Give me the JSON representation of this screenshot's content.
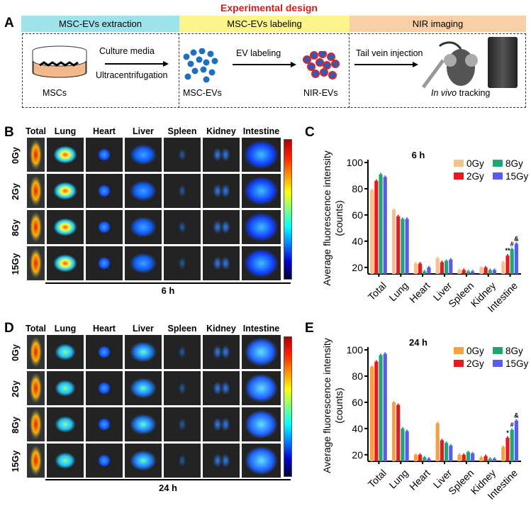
{
  "panel_a": {
    "label": "A",
    "title": "Experimental  design",
    "stages": [
      {
        "label": "MSC-EVs extraction",
        "color": "#9ee3ea"
      },
      {
        "label": "MSC-EVs labeling",
        "color": "#fbf58c"
      },
      {
        "label": "NIR imaging",
        "color": "#f9cfa5"
      }
    ],
    "texts": {
      "culture": "Culture media",
      "ultra": "Ultracentrifugation",
      "mscs": "MSCs",
      "ev_labeling": "EV labeling",
      "msc_evs": "MSC-EVs",
      "nir_evs": "NIR-EVs",
      "tail": "Tail vein injection",
      "in_vivo": "In vivo",
      "tracking": " tracking"
    }
  },
  "panel_b": {
    "label": "B",
    "time": "6 h"
  },
  "panel_d": {
    "label": "D",
    "time": "24 h"
  },
  "image_columns": [
    "Total",
    "Lung",
    "Heart",
    "Liver",
    "Spleen",
    "Kidney",
    "Intestine"
  ],
  "image_rows": [
    "0Gy",
    "2Gy",
    "8Gy",
    "15Gy"
  ],
  "chart_data": [
    {
      "panel": "C",
      "type": "bar",
      "title": "6 h",
      "ylabel": "Average fluorescence intensity\n(counts)",
      "ylabel_lines": [
        "Average fluorescence intensity",
        "(counts)"
      ],
      "ylim": [
        15,
        100
      ],
      "yticks": [
        20,
        40,
        60,
        80,
        100
      ],
      "categories": [
        "Total",
        "Lung",
        "Heart",
        "Liver",
        "Spleen",
        "Kidney",
        "Intestine"
      ],
      "legend": "top-right",
      "series": [
        {
          "name": "0Gy",
          "color": "#f8c08a",
          "values": [
            79,
            64,
            23,
            27,
            18,
            20,
            24
          ]
        },
        {
          "name": "2Gy",
          "color": "#e8191e",
          "values": [
            86,
            59,
            23,
            24,
            18,
            20,
            29
          ]
        },
        {
          "name": "8Gy",
          "color": "#1fa672",
          "values": [
            91,
            57,
            17,
            25,
            17,
            18,
            34
          ]
        },
        {
          "name": "15Gy",
          "color": "#5a5af0",
          "values": [
            89,
            57,
            20,
            26,
            17,
            18,
            38
          ]
        }
      ],
      "annotations": [
        {
          "category": "Intestine",
          "series": "2Gy",
          "text": "**"
        },
        {
          "category": "Intestine",
          "series": "8Gy",
          "text": "#"
        },
        {
          "category": "Intestine",
          "series": "15Gy",
          "text": "&"
        }
      ]
    },
    {
      "panel": "E",
      "type": "bar",
      "title": "24 h",
      "ylabel": "Average fluorescence intensity\n(counts)",
      "ylabel_lines": [
        "Average fluorescence intensity",
        "(counts)"
      ],
      "ylim": [
        15,
        100
      ],
      "yticks": [
        20,
        40,
        60,
        80,
        100
      ],
      "categories": [
        "Total",
        "Lung",
        "Heart",
        "Liver",
        "Spleen",
        "Kidney",
        "Intestine"
      ],
      "legend": "top-right",
      "series": [
        {
          "name": "0Gy",
          "color": "#f6a040",
          "values": [
            87,
            60,
            20,
            44,
            20,
            18,
            26
          ]
        },
        {
          "name": "2Gy",
          "color": "#e8191e",
          "values": [
            91,
            58,
            20,
            31,
            20,
            19,
            33
          ]
        },
        {
          "name": "8Gy",
          "color": "#1fa672",
          "values": [
            96,
            40,
            18,
            29,
            22,
            17,
            39
          ]
        },
        {
          "name": "15Gy",
          "color": "#5a5af0",
          "values": [
            97,
            38,
            17,
            27,
            21,
            17,
            46
          ]
        }
      ],
      "annotations": [
        {
          "category": "Intestine",
          "series": "2Gy",
          "text": "*"
        },
        {
          "category": "Intestine",
          "series": "8Gy",
          "text": "#"
        },
        {
          "category": "Intestine",
          "series": "15Gy",
          "text": "&"
        }
      ]
    }
  ]
}
